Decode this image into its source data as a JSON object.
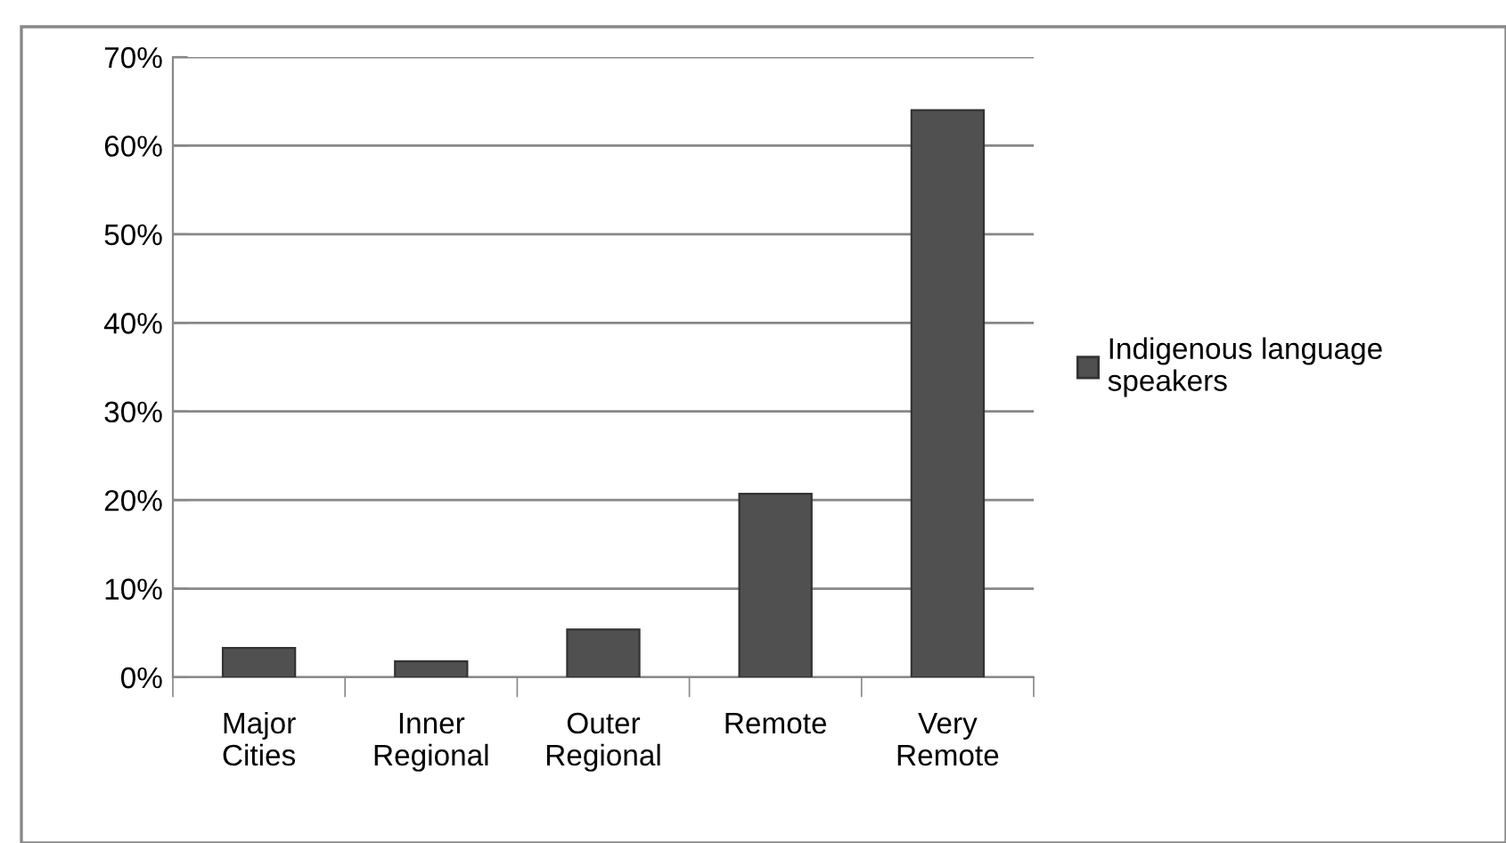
{
  "chart_data": {
    "type": "bar",
    "categories": [
      "Major\nCities",
      "Inner\nRegional",
      "Outer\nRegional",
      "Remote",
      "Very\nRemote"
    ],
    "series": [
      {
        "name": "Indigenous language\nspeakers",
        "color": "#505050",
        "values": [
          3.3,
          1.8,
          5.4,
          20.7,
          64
        ]
      }
    ],
    "ylim": [
      0,
      70
    ],
    "yticks": [
      {
        "value": 0,
        "label": "0%"
      },
      {
        "value": 10,
        "label": "10%"
      },
      {
        "value": 20,
        "label": "20%"
      },
      {
        "value": 30,
        "label": "30%"
      },
      {
        "value": 40,
        "label": "40%"
      },
      {
        "value": 50,
        "label": "50%"
      },
      {
        "value": 60,
        "label": "60%"
      },
      {
        "value": 70,
        "label": "70%"
      }
    ],
    "grid": "y",
    "legend": "right"
  }
}
